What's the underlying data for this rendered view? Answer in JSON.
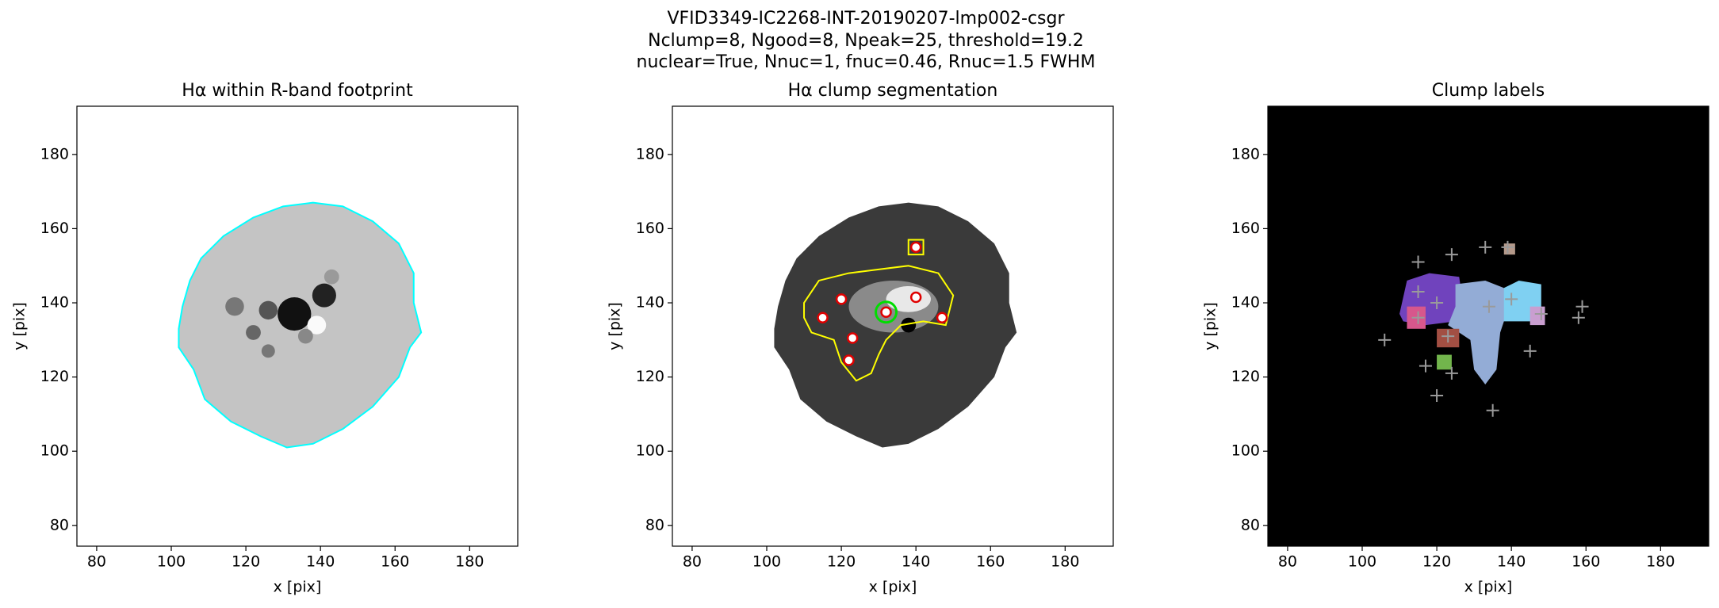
{
  "figure_title": [
    "VFID3349-IC2268-INT-20190207-lmp002-csgr",
    "Nclump=8, Ngood=8, Npeak=25, threshold=19.2",
    "nuclear=True, Nnuc=1, fnuc=0.46, Rnuc=1.5 FWHM"
  ],
  "chart_data": [
    {
      "type": "image",
      "title": "Hα within R-band footprint",
      "xlabel": "x [pix]",
      "ylabel": "y [pix]",
      "xlim": [
        74.7,
        192.9
      ],
      "ylim": [
        74.4,
        193
      ],
      "xticks": [
        80,
        100,
        120,
        140,
        160,
        180
      ],
      "yticks": [
        80,
        100,
        120,
        140,
        160,
        180
      ]
    },
    {
      "type": "image",
      "title": "Hα clump segmentation",
      "xlabel": "x [pix]",
      "ylabel": "y [pix]",
      "xlim": [
        74.7,
        192.9
      ],
      "ylim": [
        74.4,
        193
      ],
      "xticks": [
        80,
        100,
        120,
        140,
        160,
        180
      ],
      "yticks": [
        80,
        100,
        120,
        140,
        160,
        180
      ],
      "peaks": {
        "x": [
          120,
          140,
          115,
          147,
          123,
          122,
          140
        ],
        "y": [
          141,
          141.5,
          136,
          136,
          130.5,
          124.5,
          155
        ],
        "color": "#e00000"
      },
      "nucleus": {
        "x": [
          132
        ],
        "y": [
          137.5
        ],
        "color": "#00dd00"
      }
    },
    {
      "type": "image",
      "title": "Clump labels",
      "xlabel": "x [pix]",
      "ylabel": "y [pix]",
      "xlim": [
        74.7,
        192.9
      ],
      "ylim": [
        74.4,
        193
      ],
      "xticks": [
        80,
        100,
        120,
        140,
        160,
        180
      ],
      "yticks": [
        80,
        100,
        120,
        140,
        160,
        180
      ],
      "crosses": {
        "x": [
          115,
          124,
          133,
          139,
          115,
          120,
          134,
          140,
          148,
          159,
          158,
          115,
          123,
          106,
          145,
          117,
          124,
          120,
          135
        ],
        "y": [
          151,
          153,
          155,
          155,
          143,
          140,
          139,
          141,
          137,
          139,
          136,
          136,
          131,
          130,
          127,
          123,
          121,
          115,
          111
        ],
        "color": "#9a9a9a"
      }
    }
  ]
}
